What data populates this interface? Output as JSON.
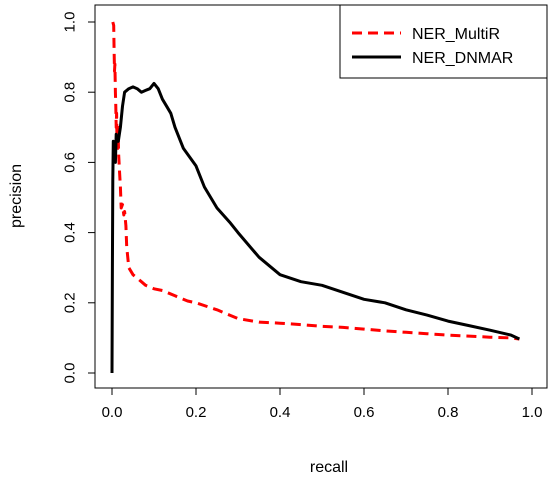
{
  "chart_data": {
    "type": "line",
    "title": "",
    "xlabel": "recall",
    "ylabel": "precision",
    "xlim": [
      0.0,
      1.0
    ],
    "ylim": [
      0.0,
      1.0
    ],
    "x_ticks": [
      "0.0",
      "0.2",
      "0.4",
      "0.6",
      "0.8",
      "1.0"
    ],
    "y_ticks": [
      "0.0",
      "0.2",
      "0.4",
      "0.6",
      "0.8",
      "1.0"
    ],
    "grid": false,
    "legend_position": "top-right",
    "series": [
      {
        "name": "NER_MultiR",
        "color": "#ff0000",
        "style": "dashed",
        "x": [
          0.002,
          0.004,
          0.005,
          0.006,
          0.007,
          0.008,
          0.009,
          0.01,
          0.011,
          0.012,
          0.013,
          0.014,
          0.015,
          0.016,
          0.018,
          0.02,
          0.022,
          0.025,
          0.028,
          0.03,
          0.033,
          0.035,
          0.04,
          0.045,
          0.05,
          0.06,
          0.07,
          0.08,
          0.1,
          0.12,
          0.15,
          0.18,
          0.2,
          0.25,
          0.28,
          0.3,
          0.35,
          0.4,
          0.45,
          0.5,
          0.55,
          0.6,
          0.65,
          0.7,
          0.75,
          0.8,
          0.85,
          0.9,
          0.95,
          0.97
        ],
        "y": [
          1.0,
          0.99,
          0.92,
          0.86,
          0.88,
          0.8,
          0.76,
          0.7,
          0.74,
          0.66,
          0.63,
          0.7,
          0.66,
          0.62,
          0.57,
          0.53,
          0.47,
          0.48,
          0.45,
          0.46,
          0.42,
          0.36,
          0.3,
          0.29,
          0.28,
          0.27,
          0.26,
          0.25,
          0.24,
          0.235,
          0.22,
          0.205,
          0.2,
          0.18,
          0.165,
          0.155,
          0.145,
          0.142,
          0.138,
          0.133,
          0.13,
          0.125,
          0.12,
          0.116,
          0.112,
          0.108,
          0.105,
          0.102,
          0.1,
          0.097
        ]
      },
      {
        "name": "NER_DNMAR",
        "color": "#000000",
        "style": "solid",
        "x": [
          0.0,
          0.001,
          0.002,
          0.003,
          0.005,
          0.008,
          0.01,
          0.015,
          0.02,
          0.025,
          0.03,
          0.04,
          0.05,
          0.06,
          0.07,
          0.08,
          0.09,
          0.1,
          0.11,
          0.12,
          0.13,
          0.14,
          0.15,
          0.17,
          0.2,
          0.22,
          0.25,
          0.28,
          0.3,
          0.35,
          0.38,
          0.4,
          0.45,
          0.5,
          0.55,
          0.6,
          0.65,
          0.7,
          0.75,
          0.8,
          0.85,
          0.9,
          0.95,
          0.97
        ],
        "y": [
          0.0,
          0.3,
          0.55,
          0.66,
          0.62,
          0.6,
          0.68,
          0.66,
          0.7,
          0.76,
          0.8,
          0.81,
          0.815,
          0.81,
          0.8,
          0.805,
          0.81,
          0.825,
          0.81,
          0.78,
          0.76,
          0.74,
          0.7,
          0.64,
          0.59,
          0.53,
          0.47,
          0.43,
          0.4,
          0.33,
          0.3,
          0.28,
          0.26,
          0.25,
          0.23,
          0.21,
          0.2,
          0.18,
          0.165,
          0.148,
          0.135,
          0.122,
          0.108,
          0.097
        ]
      }
    ]
  }
}
